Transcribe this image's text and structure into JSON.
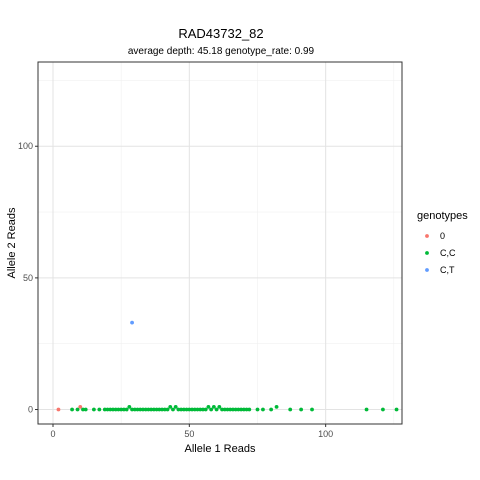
{
  "chart_data": {
    "type": "scatter",
    "title": "RAD43732_82",
    "subtitle": "average depth:  45.18  genotype_rate:  0.99",
    "xlabel": "Allele 1 Reads",
    "ylabel": "Allele 2 Reads",
    "xlim": [
      -5.5,
      128
    ],
    "ylim": [
      -5.5,
      132
    ],
    "xticks": [
      0,
      50,
      100
    ],
    "yticks": [
      0,
      50,
      100
    ],
    "grid": true,
    "legend": {
      "title": "genotypes",
      "placement": "right"
    },
    "series": [
      {
        "name": "0",
        "color": "#F8766D",
        "points": [
          [
            2,
            0
          ],
          [
            10,
            1
          ]
        ]
      },
      {
        "name": "C,C",
        "color": "#00BA38",
        "points": [
          [
            7,
            0
          ],
          [
            9,
            0
          ],
          [
            11,
            0
          ],
          [
            12,
            0
          ],
          [
            15,
            0
          ],
          [
            17,
            0
          ],
          [
            19,
            0
          ],
          [
            20,
            0
          ],
          [
            21,
            0
          ],
          [
            22,
            0
          ],
          [
            23,
            0
          ],
          [
            24,
            0
          ],
          [
            25,
            0
          ],
          [
            26,
            0
          ],
          [
            27,
            0
          ],
          [
            28,
            1
          ],
          [
            29,
            0
          ],
          [
            30,
            0
          ],
          [
            31,
            0
          ],
          [
            32,
            0
          ],
          [
            33,
            0
          ],
          [
            34,
            0
          ],
          [
            35,
            0
          ],
          [
            36,
            0
          ],
          [
            37,
            0
          ],
          [
            38,
            0
          ],
          [
            39,
            0
          ],
          [
            40,
            0
          ],
          [
            41,
            0
          ],
          [
            42,
            0
          ],
          [
            43,
            1
          ],
          [
            44,
            0
          ],
          [
            45,
            1
          ],
          [
            46,
            0
          ],
          [
            47,
            0
          ],
          [
            48,
            0
          ],
          [
            49,
            0
          ],
          [
            50,
            0
          ],
          [
            51,
            0
          ],
          [
            52,
            0
          ],
          [
            53,
            0
          ],
          [
            54,
            0
          ],
          [
            55,
            0
          ],
          [
            56,
            0
          ],
          [
            57,
            1
          ],
          [
            58,
            0
          ],
          [
            59,
            1
          ],
          [
            60,
            0
          ],
          [
            61,
            1
          ],
          [
            62,
            0
          ],
          [
            63,
            0
          ],
          [
            64,
            0
          ],
          [
            65,
            0
          ],
          [
            66,
            0
          ],
          [
            67,
            0
          ],
          [
            68,
            0
          ],
          [
            69,
            0
          ],
          [
            70,
            0
          ],
          [
            71,
            0
          ],
          [
            72,
            0
          ],
          [
            75,
            0
          ],
          [
            77,
            0
          ],
          [
            80,
            0
          ],
          [
            82,
            1
          ],
          [
            87,
            0
          ],
          [
            91,
            0
          ],
          [
            95,
            0
          ],
          [
            115,
            0
          ],
          [
            121,
            0
          ],
          [
            126,
            0
          ]
        ]
      },
      {
        "name": "C,T",
        "color": "#619CFF",
        "points": [
          [
            29,
            33
          ]
        ]
      }
    ]
  }
}
